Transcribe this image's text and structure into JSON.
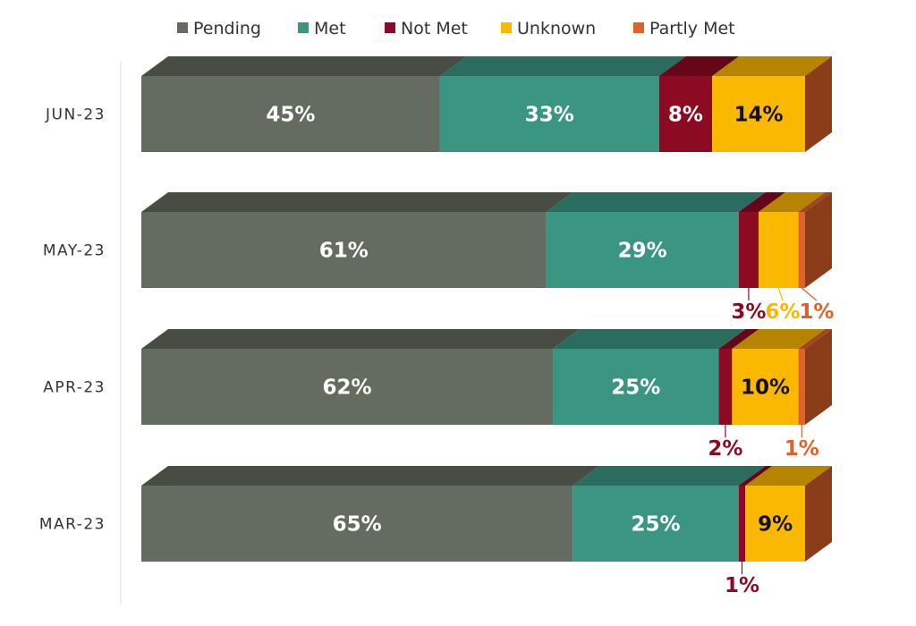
{
  "chart_data": {
    "type": "bar",
    "orientation": "horizontal",
    "stacked": true,
    "percent": true,
    "style": "3d",
    "legend_position": "top",
    "grid": false,
    "categories": [
      "JUN-23",
      "MAY-23",
      "APR-23",
      "MAR-23"
    ],
    "series": [
      {
        "name": "Pending",
        "color": "#646b5f",
        "values": [
          45,
          61,
          62,
          65
        ],
        "labels": [
          "45%",
          "61%",
          "62%",
          "65%"
        ]
      },
      {
        "name": "Met",
        "color": "#3a9683",
        "values": [
          33,
          29,
          25,
          25
        ],
        "labels": [
          "33%",
          "29%",
          "25%",
          "25%"
        ]
      },
      {
        "name": "Not Met",
        "color": "#8c0a22",
        "values": [
          8,
          3,
          2,
          1
        ],
        "labels": [
          "8%",
          "3%",
          "2%",
          "1%"
        ]
      },
      {
        "name": "Unknown",
        "color": "#fbb800",
        "values": [
          14,
          6,
          10,
          9
        ],
        "labels": [
          "14%",
          "6%",
          "10%",
          "9%"
        ]
      },
      {
        "name": "Partly Met",
        "color": "#e0622a",
        "values": [
          0,
          1,
          1,
          0
        ],
        "labels": [
          "",
          "1%",
          "1%",
          ""
        ]
      }
    ]
  }
}
